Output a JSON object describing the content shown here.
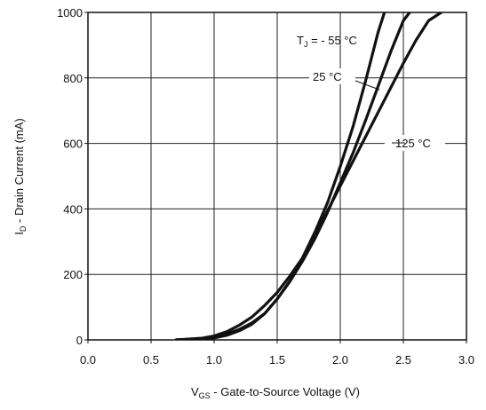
{
  "chart_data": {
    "type": "line",
    "xlabel": {
      "main": "V",
      "sub": "GS",
      "rest": " - Gate-to-Source Voltage (V)"
    },
    "ylabel": {
      "main": "I",
      "sub": "D",
      "rest": " - Drain Current (mA)"
    },
    "xlim": [
      0.0,
      3.0
    ],
    "ylim": [
      0,
      1000
    ],
    "xticks": [
      0.0,
      0.5,
      1.0,
      1.5,
      2.0,
      2.5,
      3.0
    ],
    "xtick_labels": [
      "0.0",
      "0.5",
      "1.0",
      "1.5",
      "2.0",
      "2.5",
      "3.0"
    ],
    "yticks": [
      0,
      200,
      400,
      600,
      800,
      1000
    ],
    "ytick_labels": [
      "0",
      "200",
      "400",
      "600",
      "800",
      "1000"
    ],
    "grid": true,
    "line_color": "#111111",
    "series": [
      {
        "label_main": "T",
        "label_sub": "J",
        "label_rest": " = - 55 °C",
        "x": [
          0.7,
          0.9,
          1.0,
          1.1,
          1.2,
          1.3,
          1.4,
          1.5,
          1.6,
          1.7,
          1.8,
          1.9,
          2.0,
          2.1,
          2.2,
          2.3,
          2.35
        ],
        "y": [
          0,
          3,
          8,
          18,
          32,
          52,
          80,
          125,
          180,
          250,
          330,
          420,
          530,
          650,
          790,
          940,
          1000
        ]
      },
      {
        "label_main": "",
        "label_sub": "",
        "label_rest": "25 °C",
        "x": [
          0.7,
          0.9,
          1.0,
          1.1,
          1.2,
          1.3,
          1.4,
          1.5,
          1.6,
          1.7,
          1.8,
          1.9,
          2.0,
          2.1,
          2.2,
          2.3,
          2.4,
          2.5,
          2.55
        ],
        "y": [
          0,
          2,
          6,
          14,
          28,
          48,
          80,
          125,
          178,
          240,
          310,
          390,
          480,
          570,
          670,
          775,
          880,
          975,
          1000
        ]
      },
      {
        "label_main": "",
        "label_sub": "",
        "label_rest": "125 °C",
        "x": [
          0.7,
          0.9,
          1.0,
          1.1,
          1.2,
          1.3,
          1.4,
          1.5,
          1.6,
          1.7,
          1.8,
          1.9,
          2.0,
          2.1,
          2.2,
          2.3,
          2.4,
          2.5,
          2.6,
          2.7,
          2.8
        ],
        "y": [
          0,
          5,
          12,
          25,
          45,
          70,
          105,
          145,
          195,
          250,
          320,
          395,
          470,
          545,
          620,
          695,
          770,
          845,
          915,
          975,
          1000
        ]
      }
    ]
  }
}
